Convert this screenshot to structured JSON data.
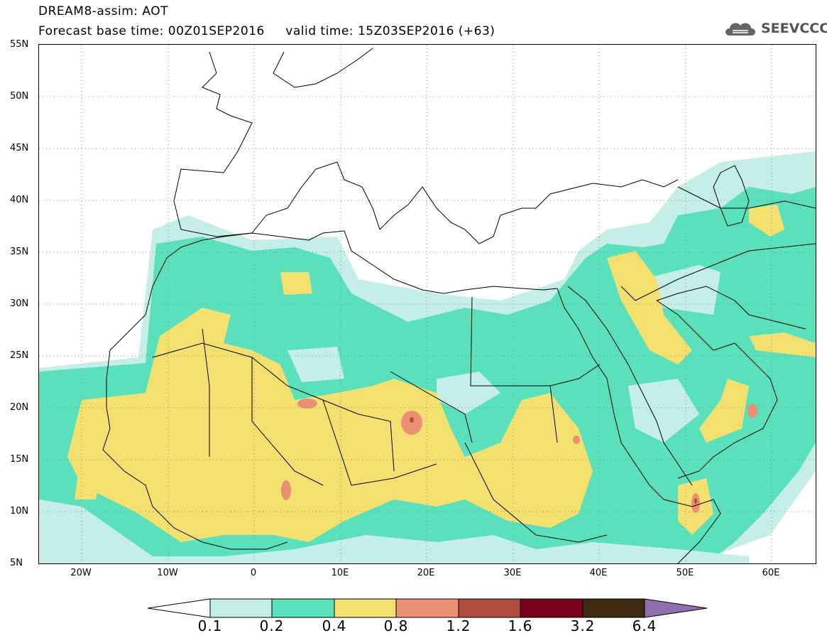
{
  "title": {
    "line1": "DREAM8-assim: AOT",
    "line2": "Forecast base time: 00Z01SEP2016     valid time: 15Z03SEP2016 (+63)"
  },
  "logo": {
    "text": "SEEVCCC",
    "icon": "cloud-logo-icon"
  },
  "map": {
    "lon_range": [
      -25,
      65
    ],
    "lat_range": [
      5,
      55
    ],
    "lat_ticks": [
      "55N",
      "50N",
      "45N",
      "40N",
      "35N",
      "30N",
      "25N",
      "20N",
      "15N",
      "10N",
      "5N"
    ],
    "lon_ticks": [
      "20W",
      "10W",
      "0",
      "10E",
      "20E",
      "30E",
      "40E",
      "50E",
      "60E"
    ],
    "gridlines": "dotted"
  },
  "legend": {
    "labels": [
      "0.1",
      "0.2",
      "0.4",
      "0.8",
      "1.2",
      "1.6",
      "3.2",
      "6.4"
    ],
    "colors": [
      "#ffffff",
      "#c4eee6",
      "#5ae0bb",
      "#f4e06e",
      "#eb9074",
      "#b04d40",
      "#7a0020",
      "#3f2a14",
      "#8e6fb0"
    ]
  },
  "colors": {
    "land": "#ffffff",
    "border": "#000000"
  }
}
